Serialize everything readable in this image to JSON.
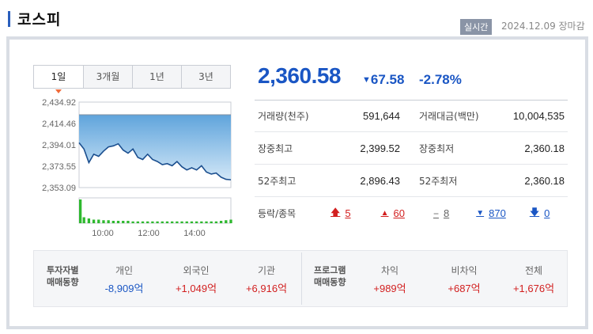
{
  "header": {
    "title": "코스피",
    "badge": "실시간",
    "datetime": "2024.12.09 장마감"
  },
  "tabs": [
    "1일",
    "3개월",
    "1년",
    "3년"
  ],
  "price": {
    "value": "2,360.58",
    "change": "67.58",
    "change_pct": "-2.78%",
    "direction": "down"
  },
  "stats": {
    "volume_label": "거래량(천주)",
    "volume": "591,644",
    "amount_label": "거래대금(백만)",
    "amount": "10,004,535",
    "high_label": "장중최고",
    "high": "2,399.52",
    "low_label": "장중최저",
    "low": "2,360.18",
    "w52_high_label": "52주최고",
    "w52_high": "2,896.43",
    "w52_low_label": "52주최저",
    "w52_low": "2,360.18",
    "breadth_label": "등락/종목",
    "upper_limit": "5",
    "up": "60",
    "unchanged": "8",
    "down": "870",
    "lower_limit": "0"
  },
  "investors": {
    "label_1": "투자자별",
    "label_2": "매매동향",
    "cols": [
      {
        "k": "개인",
        "v": "-8,909억",
        "sign": "neg"
      },
      {
        "k": "외국인",
        "v": "+1,049억",
        "sign": "pos"
      },
      {
        "k": "기관",
        "v": "+6,916억",
        "sign": "pos"
      }
    ]
  },
  "program": {
    "label_1": "프로그램",
    "label_2": "매매동향",
    "cols": [
      {
        "k": "차익",
        "v": "+989억",
        "sign": "pos"
      },
      {
        "k": "비차익",
        "v": "+687억",
        "sign": "pos"
      },
      {
        "k": "전체",
        "v": "+1,676억",
        "sign": "pos"
      }
    ]
  },
  "chart_data": {
    "type": "area",
    "yticks": [
      "2,434.92",
      "2,414.46",
      "2,394.01",
      "2,373.55",
      "2,353.09"
    ],
    "ylim": [
      2353.09,
      2434.92
    ],
    "xticks": [
      "10:00",
      "12:00",
      "14:00"
    ],
    "x": [
      "09:00",
      "09:05",
      "09:10",
      "09:15",
      "09:20",
      "09:30",
      "09:40",
      "09:50",
      "10:00",
      "10:10",
      "10:20",
      "10:30",
      "10:45",
      "11:00",
      "11:15",
      "11:30",
      "11:45",
      "12:00",
      "12:15",
      "12:30",
      "12:45",
      "13:00",
      "13:15",
      "13:30",
      "13:45",
      "14:00",
      "14:15",
      "14:30",
      "14:45",
      "15:00",
      "15:15",
      "15:30"
    ],
    "values": [
      2396,
      2390,
      2377,
      2385,
      2383,
      2388,
      2392,
      2393,
      2395,
      2389,
      2386,
      2390,
      2382,
      2380,
      2385,
      2380,
      2378,
      2375,
      2376,
      2374,
      2378,
      2373,
      2370,
      2372,
      2370,
      2374,
      2368,
      2366,
      2367,
      2363,
      2361,
      2360.58
    ],
    "volume": [
      40,
      10,
      8,
      6,
      6,
      5,
      5,
      4,
      4,
      4,
      4,
      3,
      3,
      3,
      3,
      3,
      3,
      3,
      3,
      3,
      3,
      3,
      3,
      3,
      3,
      3,
      3,
      3,
      3,
      4,
      5,
      6
    ],
    "colors": {
      "line": "#1b4f8f",
      "fill_top": "#5fa4dc",
      "fill_bottom": "#d2e7f7",
      "volume": "#2eb82e",
      "prev_close": "#7f8fa0"
    }
  }
}
